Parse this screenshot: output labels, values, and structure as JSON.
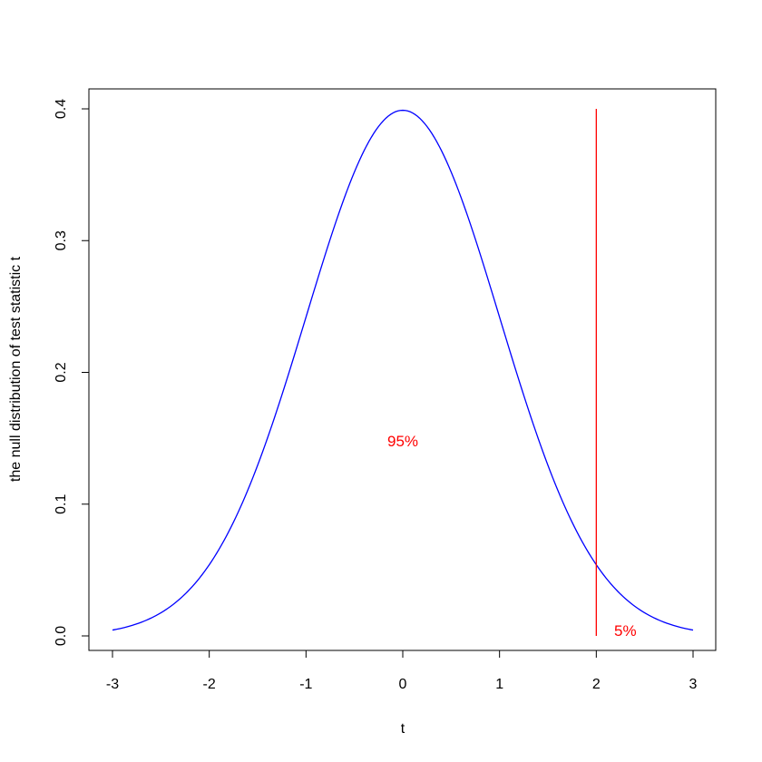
{
  "chart_data": {
    "type": "line",
    "xlabel": "t",
    "ylabel": "the null distribution of test statistic t",
    "xlim": [
      -3,
      3
    ],
    "ylim": [
      0,
      0.4
    ],
    "xticks": [
      -3,
      -2,
      -1,
      0,
      1,
      2,
      3
    ],
    "yticks": [
      0.0,
      0.1,
      0.2,
      0.3,
      0.4
    ],
    "x_tick_labels": [
      "-3",
      "-2",
      "-1",
      "0",
      "1",
      "2",
      "3"
    ],
    "y_tick_labels": [
      "0.0",
      "0.1",
      "0.2",
      "0.3",
      "0.4"
    ],
    "grid": false,
    "series": [
      {
        "color": "#0000ff",
        "x": [
          -3.0,
          -2.5,
          -2.0,
          -1.5,
          -1.0,
          -0.5,
          0.0,
          0.5,
          1.0,
          1.5,
          2.0,
          2.5,
          3.0
        ],
        "y": [
          0.0044,
          0.0175,
          0.054,
          0.1295,
          0.242,
          0.352,
          0.3989,
          0.352,
          0.242,
          0.1295,
          0.054,
          0.0175,
          0.0044
        ]
      }
    ],
    "vline": {
      "x": 2,
      "y_from": 0,
      "y_to": 0.4,
      "color": "#ff0000"
    },
    "annotations": [
      {
        "text": "95%",
        "x": 0,
        "y": 0.148,
        "color": "#ff0000"
      },
      {
        "text": "5%",
        "x": 2.3,
        "y": 0.004,
        "color": "#ff0000"
      }
    ]
  }
}
